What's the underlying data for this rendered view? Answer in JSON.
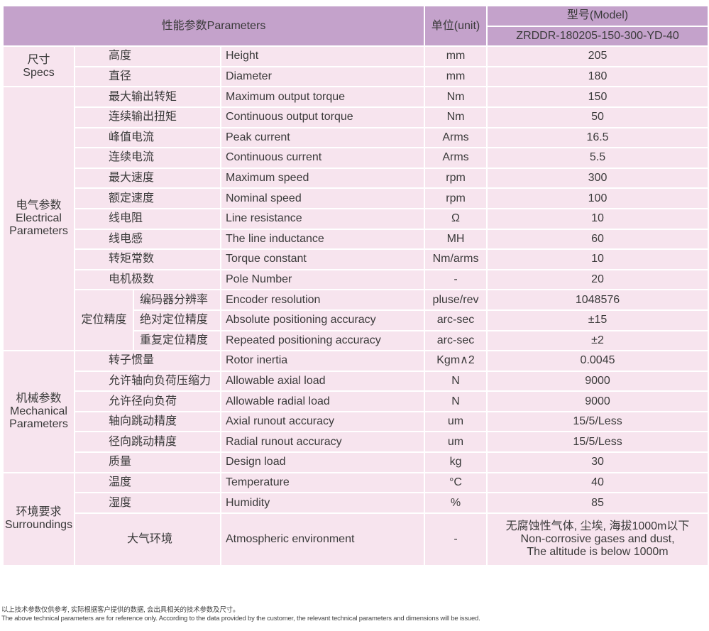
{
  "header": {
    "parameters": "性能参数Parameters",
    "unit": "单位(unit)",
    "model_label": "型号(Model)",
    "model": "ZRDDR-180205-150-300-YD-40"
  },
  "groups": {
    "specs": {
      "cn": "尺寸",
      "en": "Specs"
    },
    "electrical": {
      "cn": "电气参数",
      "en1": "Electrical",
      "en2": "Parameters"
    },
    "positioning": "定位精度",
    "mechanical": {
      "cn": "机械参数",
      "en1": "Mechanical",
      "en2": "Parameters"
    },
    "surroundings": {
      "cn": "环境要求",
      "en": "Surroundings"
    }
  },
  "rows": [
    {
      "cn": "高度",
      "en": "Height",
      "unit": "mm",
      "value": "205"
    },
    {
      "cn": "直径",
      "en": "Diameter",
      "unit": "mm",
      "value": "180"
    },
    {
      "cn": "最大输出转矩",
      "en": "Maximum output torque",
      "unit": "Nm",
      "value": "150"
    },
    {
      "cn": "连续输出扭矩",
      "en": "Continuous output torque",
      "unit": "Nm",
      "value": "50"
    },
    {
      "cn": "峰值电流",
      "en": "Peak current",
      "unit": "Arms",
      "value": "16.5"
    },
    {
      "cn": "连续电流",
      "en": "Continuous current",
      "unit": "Arms",
      "value": "5.5"
    },
    {
      "cn": "最大速度",
      "en": "Maximum speed",
      "unit": "rpm",
      "value": "300"
    },
    {
      "cn": "额定速度",
      "en": "Nominal speed",
      "unit": "rpm",
      "value": "100"
    },
    {
      "cn": "线电阻",
      "en": "Line resistance",
      "unit": "Ω",
      "value": "10"
    },
    {
      "cn": "线电感",
      "en": "The line inductance",
      "unit": "MH",
      "value": "60"
    },
    {
      "cn": "转矩常数",
      "en": "Torque constant",
      "unit": "Nm/arms",
      "value": "10"
    },
    {
      "cn": "电机极数",
      "en": "Pole Number",
      "unit": "-",
      "value": "20"
    },
    {
      "cn": "编码器分辨率",
      "en": "Encoder resolution",
      "unit": "pluse/rev",
      "value": "1048576"
    },
    {
      "cn": "绝对定位精度",
      "en": "Absolute positioning accuracy",
      "unit": "arc-sec",
      "value": "±15"
    },
    {
      "cn": "重复定位精度",
      "en": "Repeated positioning accuracy",
      "unit": "arc-sec",
      "value": "±2"
    },
    {
      "cn": "转子惯量",
      "en": "Rotor inertia",
      "unit": "Kgm∧2",
      "value": "0.0045"
    },
    {
      "cn": "允许轴向负荷压缩力",
      "en": "Allowable axial load",
      "unit": "N",
      "value": "9000"
    },
    {
      "cn": "允许径向负荷",
      "en": "Allowable radial load",
      "unit": "N",
      "value": "9000"
    },
    {
      "cn": "轴向跳动精度",
      "en": "Axial runout accuracy",
      "unit": "um",
      "value": "15/5/Less"
    },
    {
      "cn": "径向跳动精度",
      "en": "Radial runout accuracy",
      "unit": "um",
      "value": "15/5/Less"
    },
    {
      "cn": "质量",
      "en": "Design load",
      "unit": "kg",
      "value": "30"
    },
    {
      "cn": "温度",
      "en": "Temperature",
      "unit": "°C",
      "value": "40"
    },
    {
      "cn": "湿度",
      "en": "Humidity",
      "unit": "%",
      "value": "85"
    },
    {
      "cn": "大气环境",
      "en": "Atmospheric environment",
      "unit": "-",
      "value1": "无腐蚀性气体, 尘埃, 海拔1000m以下",
      "value2": "Non-corrosive gases and dust,",
      "value3": "The altitude is below 1000m"
    }
  ],
  "notes": {
    "cn": "以上技术参数仅供参考, 实际根据客户提供的数据, 会出具相关的技术参数及尺寸。",
    "en": "The above technical parameters are for reference only. According to the data provided by the customer, the relevant technical parameters and dimensions will be issued."
  }
}
